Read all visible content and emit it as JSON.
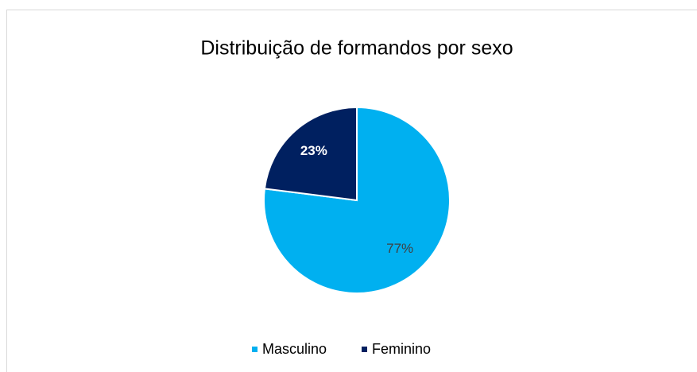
{
  "chart_data": {
    "type": "pie",
    "title": "Distribuição de formandos por sexo",
    "categories": [
      "Masculino",
      "Feminino"
    ],
    "values": [
      77,
      23
    ],
    "value_labels": [
      "77%",
      "23%"
    ],
    "colors": [
      "#00b0f0",
      "#002060"
    ],
    "label_colors": [
      "#404040",
      "#ffffff"
    ],
    "legend": "bottom"
  }
}
